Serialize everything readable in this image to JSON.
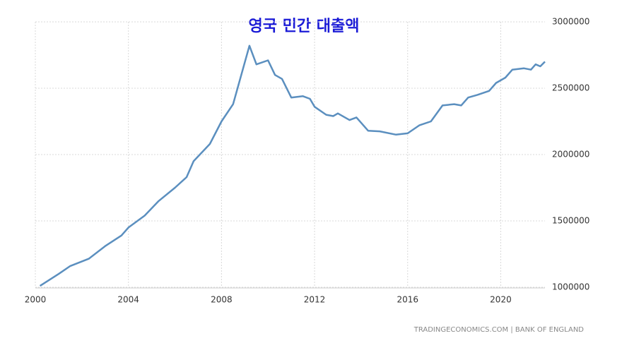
{
  "chart_data": {
    "type": "line",
    "title": "영국 민간 대출액",
    "source": "TRADINGECONOMICS.COM | BANK OF ENGLAND",
    "grid": true,
    "xlim": [
      2000,
      2021.9
    ],
    "xticks": [
      2000,
      2004,
      2008,
      2012,
      2016,
      2020
    ],
    "ylim": [
      1000000,
      3000000
    ],
    "yticks": [
      1000000,
      1500000,
      2000000,
      2500000,
      3000000
    ],
    "y_axis_side": "right",
    "x": [
      2000.2,
      2001,
      2001.5,
      2002.3,
      2003,
      2003.7,
      2004,
      2004.7,
      2005.3,
      2006,
      2006.5,
      2006.8,
      2007.5,
      2008,
      2008.5,
      2009.2,
      2009.5,
      2010,
      2010.3,
      2010.6,
      2011,
      2011.5,
      2011.8,
      2012,
      2012.5,
      2012.8,
      2013,
      2013.5,
      2013.8,
      2014.3,
      2014.8,
      2015.5,
      2016,
      2016.5,
      2017,
      2017.5,
      2018,
      2018.3,
      2018.6,
      2019,
      2019.5,
      2019.8,
      2020.2,
      2020.5,
      2021,
      2021.3,
      2021.5,
      2021.7,
      2021.9
    ],
    "series": [
      {
        "color": "#5b8fbf",
        "values": [
          1010000,
          1100000,
          1160000,
          1215000,
          1310000,
          1390000,
          1450000,
          1540000,
          1650000,
          1750000,
          1830000,
          1950000,
          2080000,
          2250000,
          2380000,
          2820000,
          2680000,
          2710000,
          2600000,
          2570000,
          2430000,
          2440000,
          2420000,
          2360000,
          2300000,
          2290000,
          2310000,
          2260000,
          2280000,
          2180000,
          2175000,
          2150000,
          2160000,
          2220000,
          2250000,
          2370000,
          2380000,
          2370000,
          2430000,
          2450000,
          2480000,
          2540000,
          2580000,
          2640000,
          2650000,
          2640000,
          2680000,
          2665000,
          2700000
        ]
      }
    ]
  }
}
